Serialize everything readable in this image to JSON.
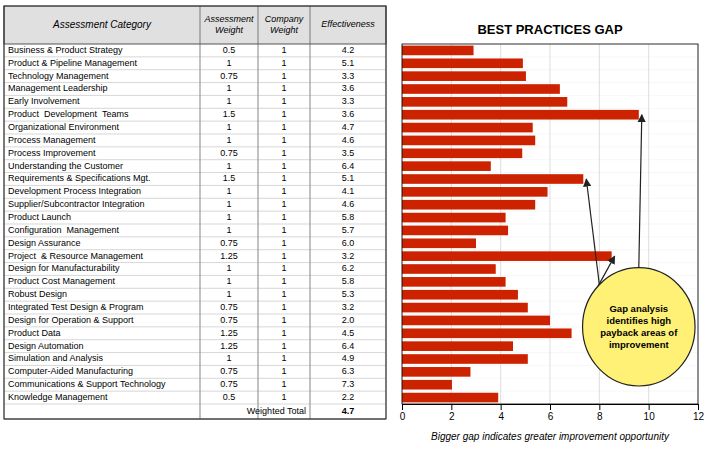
{
  "chart_data": {
    "type": "bar",
    "orientation": "horizontal",
    "title": "BEST PRACTICES GAP",
    "xlabel": "Bigger gap indicates greater improvement opportunity",
    "categories": [
      "Business & Product Strategy",
      "Product & Pipeline Management",
      "Technology Management",
      "Management Leadership",
      "Early Involvement",
      "Product  Development  Teams",
      "Organizational Environment",
      "Process Management",
      "Process Improvement",
      "Understanding the Customer",
      "Requirements & Specifications Mgt.",
      "Development Process Integration",
      "Supplier/Subcontractor Integration",
      "Product Launch",
      "Configuration  Management",
      "Design Assurance",
      "Project  & Resource Management",
      "Design for Manufacturability",
      "Product Cost Management",
      "Robust Design",
      "Integrated Test Design & Program",
      "Design for Operation & Support",
      "Product Data",
      "Design Automation",
      "Simulation and Analysis",
      "Computer-Aided Manufacturing",
      "Communications & Support Technology",
      "Knowledge Management"
    ],
    "values": [
      2.9,
      4.9,
      5.025,
      6.4,
      6.7,
      9.6,
      5.3,
      5.4,
      4.875,
      3.6,
      7.35,
      5.9,
      5.4,
      4.2,
      4.3,
      3.0,
      8.5,
      3.8,
      4.2,
      4.7,
      5.1,
      6.0,
      6.875,
      4.5,
      5.1,
      2.775,
      2.025,
      3.9
    ],
    "color": "#CC2200",
    "xlim": [
      0,
      12
    ],
    "xticks": [
      0,
      2,
      4,
      6,
      8,
      10,
      12
    ],
    "grid": true,
    "annotation": "Gap analysis\nidentifies high\npayback areas of\nimprovement",
    "col_header_label": "Assessment Category",
    "col_headers": [
      "Assessment\nWeight",
      "Company\nWeight",
      "Effectiveness"
    ],
    "assessment_weight": [
      0.5,
      1,
      0.75,
      1,
      1,
      1.5,
      1,
      1,
      0.75,
      1,
      1.5,
      1,
      1,
      1,
      1,
      0.75,
      1.25,
      1,
      1,
      1,
      0.75,
      0.75,
      1.25,
      1.25,
      1,
      0.75,
      0.75,
      0.5
    ],
    "company_weight": [
      1,
      1,
      1,
      1,
      1,
      1,
      1,
      1,
      1,
      1,
      1,
      1,
      1,
      1,
      1,
      1,
      1,
      1,
      1,
      1,
      1,
      1,
      1,
      1,
      1,
      1,
      1,
      1
    ],
    "effectiveness": [
      4.2,
      5.1,
      3.3,
      3.6,
      3.3,
      3.6,
      4.7,
      4.6,
      3.5,
      6.4,
      5.1,
      4.1,
      4.6,
      5.8,
      5.7,
      6.0,
      3.2,
      6.2,
      5.8,
      5.3,
      3.2,
      2.0,
      4.5,
      6.4,
      4.9,
      6.3,
      7.3,
      2.2
    ],
    "weighted_total_label": "Weighted Total",
    "weighted_total": 4.7
  }
}
